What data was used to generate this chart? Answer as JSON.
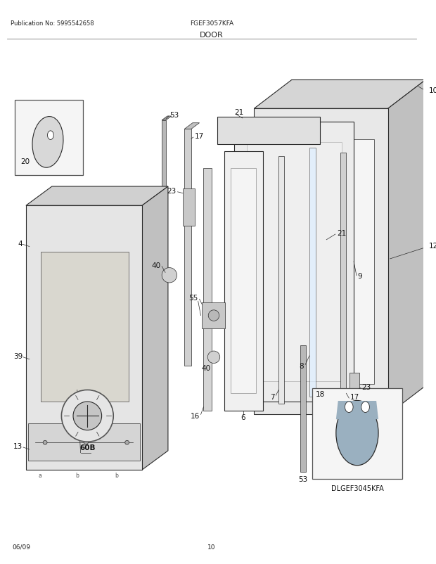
{
  "title": "DOOR",
  "pub_no": "Publication No: 5995542658",
  "model": "FGEF3057KFA",
  "alt_model": "DLGEF3045KFA",
  "page": "10",
  "date": "06/09",
  "bg_color": "#ffffff",
  "line_color": "#2a2a2a",
  "fig_w": 6.2,
  "fig_h": 8.03,
  "dpi": 100
}
